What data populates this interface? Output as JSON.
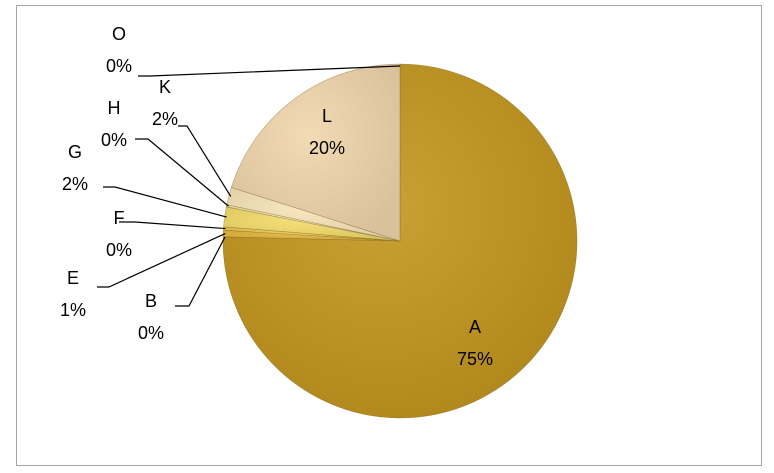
{
  "chart_data": {
    "type": "pie",
    "title": "",
    "slices": [
      {
        "label": "A",
        "value": 75,
        "pct_label": "75%",
        "color": "#c4961e"
      },
      {
        "label": "B",
        "value": 0,
        "pct_label": "0%",
        "color": "#d6a42a"
      },
      {
        "label": "E",
        "value": 0.6,
        "pct_label": "1%",
        "color": "#e2b43a"
      },
      {
        "label": "F",
        "value": 0.3,
        "pct_label": "0%",
        "color": "#edc84c"
      },
      {
        "label": "G",
        "value": 1.8,
        "pct_label": "2%",
        "color": "#f4dc6a"
      },
      {
        "label": "H",
        "value": 0.2,
        "pct_label": "0%",
        "color": "#f8e9a8"
      },
      {
        "label": "K",
        "value": 1.6,
        "pct_label": "2%",
        "color": "#f7e4b8"
      },
      {
        "label": "L",
        "value": 20,
        "pct_label": "20%",
        "color": "#f1d6ac"
      },
      {
        "label": "O",
        "value": 0,
        "pct_label": "0%",
        "color": "#f5e2c2"
      }
    ],
    "legend": "none"
  }
}
